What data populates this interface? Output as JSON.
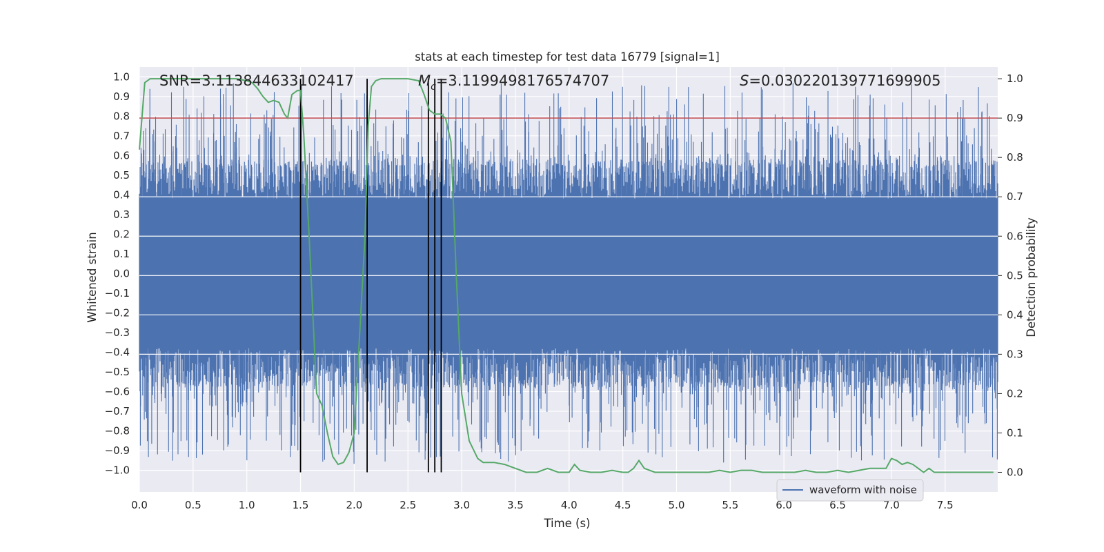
{
  "chart_data": {
    "type": "line",
    "title": "stats at each timestep for test data 16779 [signal=1]",
    "xlabel": "Time (s)",
    "ylabel_left": "Whitened strain",
    "ylabel_right": "Detection probability",
    "xlim": [
      0.0,
      7.99
    ],
    "ylim_left": [
      -1.11,
      1.05
    ],
    "ylim_right": [
      -0.05,
      1.03
    ],
    "x_ticks": [
      "0.0",
      "0.5",
      "1.0",
      "1.5",
      "2.0",
      "2.5",
      "3.0",
      "3.5",
      "4.0",
      "4.5",
      "5.0",
      "5.5",
      "6.0",
      "6.5",
      "7.0",
      "7.5"
    ],
    "x_tick_values": [
      0.0,
      0.5,
      1.0,
      1.5,
      2.0,
      2.5,
      3.0,
      3.5,
      4.0,
      4.5,
      5.0,
      5.5,
      6.0,
      6.5,
      7.0,
      7.5
    ],
    "y_left_ticks": [
      "1.0",
      "0.9",
      "0.8",
      "0.7",
      "0.6",
      "0.5",
      "0.4",
      "0.3",
      "0.2",
      "0.1",
      "0.0",
      "−0.1",
      "−0.2",
      "−0.3",
      "−0.4",
      "−0.5",
      "−0.6",
      "−0.7",
      "−0.8",
      "−0.9",
      "−1.0"
    ],
    "y_left_tick_values": [
      1.0,
      0.9,
      0.8,
      0.7,
      0.6,
      0.5,
      0.4,
      0.3,
      0.2,
      0.1,
      0.0,
      -0.1,
      -0.2,
      -0.3,
      -0.4,
      -0.5,
      -0.6,
      -0.7,
      -0.8,
      -0.9,
      -1.0
    ],
    "y_right_ticks": [
      "1.0",
      "0.9",
      "0.8",
      "0.7",
      "0.6",
      "0.5",
      "0.4",
      "0.3",
      "0.2",
      "0.1",
      "0.0"
    ],
    "y_right_tick_values": [
      1.0,
      0.9,
      0.8,
      0.7,
      0.6,
      0.5,
      0.4,
      0.3,
      0.2,
      0.1,
      0.0
    ],
    "stats": {
      "snr": "SNR=3.113844633102417",
      "mc_symbol": "M",
      "mc_subscript": "c",
      "mc_value": "=3.1199498176574707",
      "s_symbol": "S",
      "s_value": "=0.030220139771699905"
    },
    "series": [
      {
        "name": "waveform with noise",
        "axis": "left",
        "color": "#4c72b0",
        "description_values": "dense noise band, core roughly -0.4 to 0.4, spikes to about +/-0.95"
      },
      {
        "name": "detection probability",
        "axis": "right",
        "color": "#55a868",
        "x": [
          0.0,
          0.05,
          0.1,
          0.2,
          0.3,
          0.5,
          0.7,
          0.9,
          1.0,
          1.05,
          1.1,
          1.15,
          1.2,
          1.25,
          1.3,
          1.35,
          1.38,
          1.42,
          1.47,
          1.5,
          1.53,
          1.58,
          1.65,
          1.7,
          1.75,
          1.8,
          1.85,
          1.9,
          1.95,
          2.0,
          2.05,
          2.1,
          2.13,
          2.16,
          2.2,
          2.25,
          2.3,
          2.4,
          2.5,
          2.6,
          2.65,
          2.7,
          2.75,
          2.8,
          2.85,
          2.9,
          2.95,
          3.0,
          3.07,
          3.15,
          3.2,
          3.3,
          3.4,
          3.5,
          3.6,
          3.7,
          3.8,
          3.9,
          4.0,
          4.05,
          4.1,
          4.2,
          4.3,
          4.4,
          4.5,
          4.55,
          4.6,
          4.65,
          4.7,
          4.8,
          4.9,
          5.0,
          5.1,
          5.2,
          5.3,
          5.4,
          5.5,
          5.6,
          5.7,
          5.8,
          5.9,
          6.0,
          6.1,
          6.2,
          6.3,
          6.4,
          6.5,
          6.6,
          6.7,
          6.8,
          6.9,
          6.95,
          7.0,
          7.05,
          7.1,
          7.15,
          7.2,
          7.25,
          7.3,
          7.35,
          7.4,
          7.5,
          7.6,
          7.7,
          7.8,
          7.9,
          7.95
        ],
        "values": [
          0.82,
          0.99,
          1.0,
          1.0,
          1.0,
          1.0,
          1.0,
          1.0,
          0.995,
          0.99,
          0.975,
          0.955,
          0.94,
          0.945,
          0.94,
          0.91,
          0.9,
          0.96,
          0.97,
          0.97,
          0.86,
          0.6,
          0.2,
          0.17,
          0.1,
          0.04,
          0.02,
          0.025,
          0.05,
          0.1,
          0.35,
          0.6,
          0.88,
          0.98,
          0.995,
          1.0,
          1.0,
          1.0,
          1.0,
          0.995,
          0.96,
          0.92,
          0.91,
          0.91,
          0.9,
          0.84,
          0.5,
          0.2,
          0.08,
          0.035,
          0.025,
          0.025,
          0.02,
          0.01,
          0.0,
          0.0,
          0.01,
          0.0,
          0.0,
          0.02,
          0.005,
          0.0,
          0.0,
          0.005,
          0.0,
          0.0,
          0.01,
          0.03,
          0.01,
          0.0,
          0.0,
          0.0,
          0.0,
          0.0,
          0.0,
          0.005,
          0.0,
          0.005,
          0.005,
          0.0,
          0.0,
          0.0,
          0.0,
          0.005,
          0.0,
          0.0,
          0.005,
          0.0,
          0.005,
          0.01,
          0.01,
          0.01,
          0.035,
          0.03,
          0.02,
          0.025,
          0.02,
          0.01,
          0.0,
          0.01,
          0.0,
          0.0,
          0.0,
          0.0,
          0.0,
          0.0,
          0.0
        ]
      }
    ],
    "threshold_line": {
      "axis": "right",
      "value": 0.9,
      "color": "#c44e52"
    },
    "vertical_markers": {
      "x": [
        1.5,
        2.12,
        2.69,
        2.75,
        2.81
      ],
      "color": "#000000"
    },
    "legend": {
      "entries": [
        "waveform with noise"
      ],
      "location": "lower-right"
    }
  }
}
